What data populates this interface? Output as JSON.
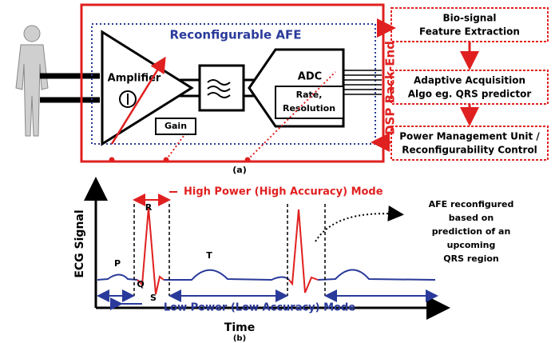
{
  "panel_a": {
    "label": "(a)",
    "afe_title": "Reconfigurable AFE",
    "amplifier": "Amplifier",
    "gain": "Gain",
    "adc": "ADC",
    "adc_setting": [
      "Rate,",
      "Resolution"
    ],
    "dsp_title": "DSP Back-End",
    "blocks": [
      {
        "lines": [
          "Bio-signal",
          "Feature  Extraction"
        ]
      },
      {
        "lines": [
          "Adaptive Acquisition",
          "Algo eg. QRS predictor"
        ]
      },
      {
        "lines": [
          "Power Management Unit /",
          "Reconfigurability Control"
        ]
      }
    ]
  },
  "panel_b": {
    "label": "(b)",
    "y_axis": "ECG Signal",
    "x_axis": "Time",
    "high_mode": "High Power (High Accuracy) Mode",
    "low_mode": "Low Power (Low Accuracy) Mode",
    "waves": {
      "p": "P",
      "q": "Q",
      "r": "R",
      "s": "S",
      "t": "T"
    },
    "annotation": [
      "AFE reconfigured",
      "based on",
      "prediction of an",
      "upcoming",
      "QRS region"
    ]
  }
}
